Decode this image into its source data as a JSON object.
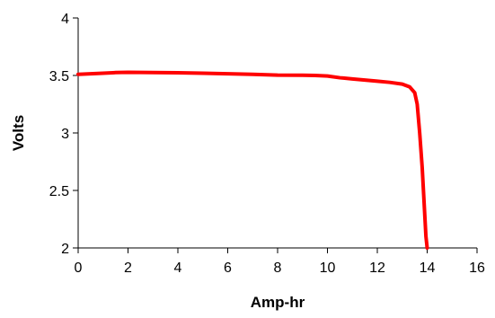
{
  "chart_data": {
    "type": "line",
    "title": "",
    "xlabel": "Amp-hr",
    "ylabel": "Volts",
    "xlim": [
      0,
      16
    ],
    "ylim": [
      2,
      4
    ],
    "xticks": [
      "0",
      "2",
      "4",
      "6",
      "8",
      "10",
      "12",
      "14",
      "16"
    ],
    "yticks": [
      "2",
      "2.5",
      "3",
      "3.5",
      "4"
    ],
    "grid": false,
    "legend": "none",
    "series": [
      {
        "color": "#ff0000",
        "x": [
          0,
          0.5,
          1,
          1.5,
          2,
          3,
          4,
          5,
          6,
          7,
          8,
          9,
          9.5,
          10,
          10.5,
          11,
          11.5,
          12,
          12.5,
          13,
          13.3,
          13.5,
          13.6,
          13.7,
          13.8,
          13.85,
          13.9,
          13.95,
          14.0
        ],
        "y": [
          3.51,
          3.515,
          3.52,
          3.525,
          3.527,
          3.525,
          3.523,
          3.52,
          3.515,
          3.51,
          3.503,
          3.502,
          3.5,
          3.495,
          3.48,
          3.47,
          3.46,
          3.45,
          3.44,
          3.425,
          3.4,
          3.35,
          3.25,
          3.0,
          2.7,
          2.5,
          2.3,
          2.1,
          2.0
        ]
      }
    ]
  }
}
